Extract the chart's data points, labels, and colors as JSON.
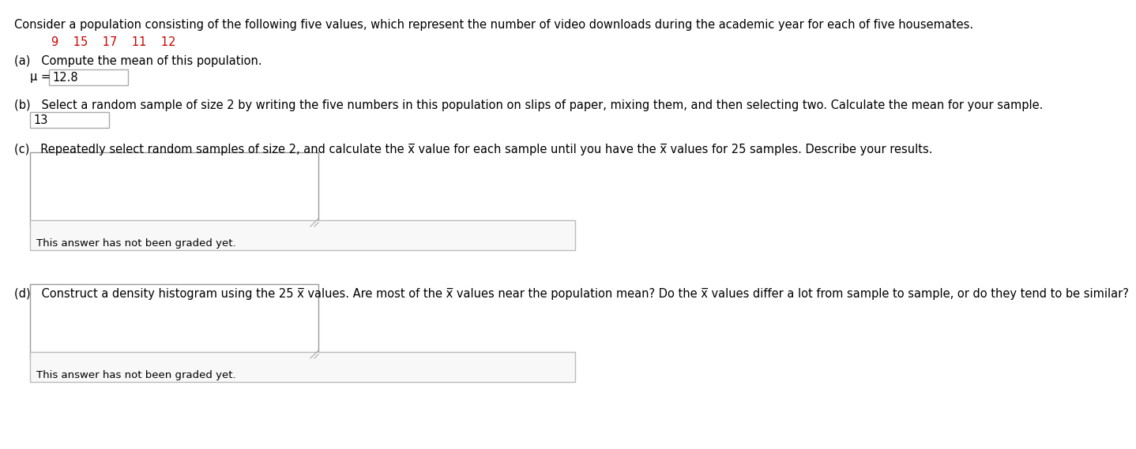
{
  "bg_color": "#ffffff",
  "text_color": "#000000",
  "red_color": "#cc0000",
  "gray_color": "#888888",
  "line1": "Consider a population consisting of the following five values, which represent the number of video downloads during the academic year for each of five housemates.",
  "values_line": "9    15    17    11    12",
  "part_a_label": "(a)   Compute the mean of this population.",
  "part_a_mu": "μ = ",
  "part_a_answer": "12.8",
  "part_b_label": "(b)   Select a random sample of size 2 by writing the five numbers in this population on slips of paper, mixing them, and then selecting two. Calculate the mean for your sample.",
  "part_b_answer": "13",
  "part_c_label": "(c)   Repeatedly select random samples of size 2, and calculate the x̅ value for each sample until you have the x̅ values for 25 samples. Describe your results.",
  "part_d_label": "(d)   Construct a density histogram using the 25 x̅ values. Are most of the x̅ values near the population mean? Do the x̅ values differ a lot from sample to sample, or do they tend to be similar?",
  "not_graded": "This answer has not been graded yet.",
  "font_size_main": 10.5,
  "font_size_small": 9.5
}
